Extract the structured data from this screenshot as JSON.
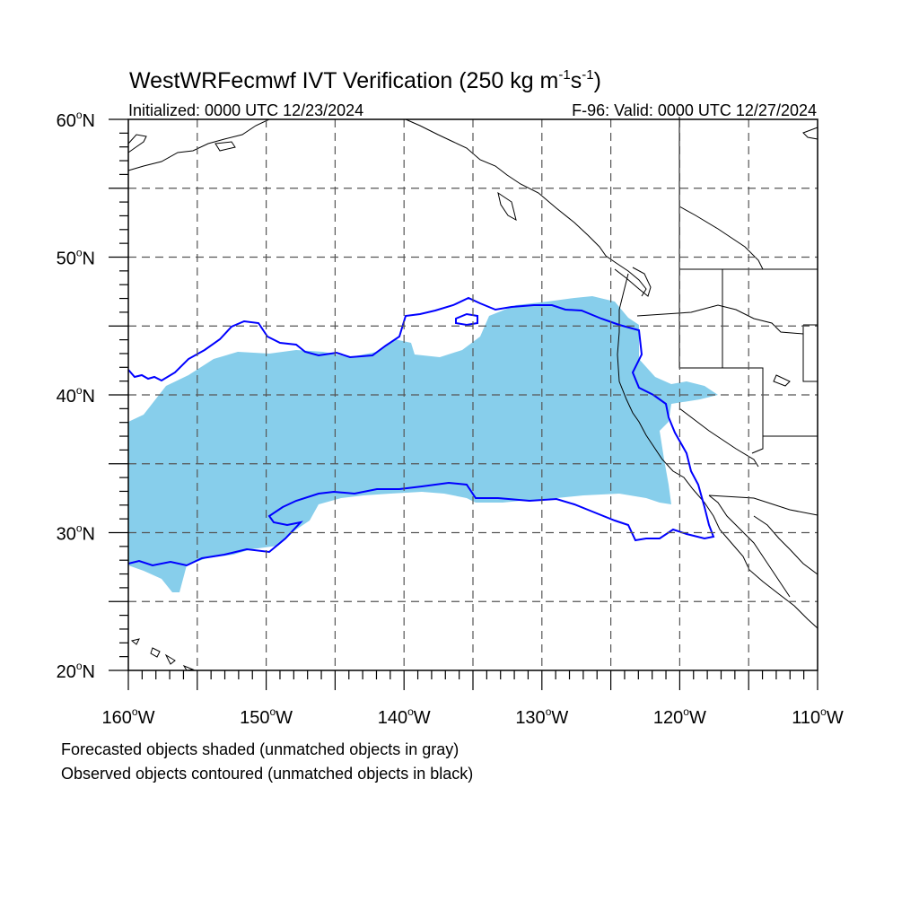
{
  "title": {
    "main": "WestWRFecmwf IVT Verification (250 kg m",
    "sup1": "-1",
    "mid": "s",
    "sup2": "-1",
    "close": ")"
  },
  "initialized": "Initialized: 0000 UTC 12/23/2024",
  "valid": "F-96: Valid: 0000 UTC 12/27/2024",
  "map": {
    "lon_range": [
      -160,
      -110
    ],
    "lat_range": [
      20,
      60
    ],
    "grid_lon_step": 5,
    "grid_lat_step": 5,
    "grid": true,
    "lat_labels": [
      {
        "deg": "60",
        "hemi": "N",
        "lat": 60
      },
      {
        "deg": "50",
        "hemi": "N",
        "lat": 50
      },
      {
        "deg": "40",
        "hemi": "N",
        "lat": 40
      },
      {
        "deg": "30",
        "hemi": "N",
        "lat": 30
      },
      {
        "deg": "20",
        "hemi": "N",
        "lat": 20
      }
    ],
    "lon_labels": [
      {
        "deg": "160",
        "hemi": "W",
        "lon": -160
      },
      {
        "deg": "150",
        "hemi": "W",
        "lon": -150
      },
      {
        "deg": "140",
        "hemi": "W",
        "lon": -140
      },
      {
        "deg": "130",
        "hemi": "W",
        "lon": -130
      },
      {
        "deg": "120",
        "hemi": "W",
        "lon": -120
      },
      {
        "deg": "110",
        "hemi": "W",
        "lon": -110
      }
    ],
    "degree_symbol": "o"
  },
  "objects": {
    "forecast_fill_color": "#87ceeb",
    "observed_contour_color": "#0000ff",
    "coastline_color": "#000000"
  },
  "notes": [
    "Forecasted objects shaded (unmatched objects in gray)",
    "Observed objects contoured (unmatched objects in black)"
  ]
}
